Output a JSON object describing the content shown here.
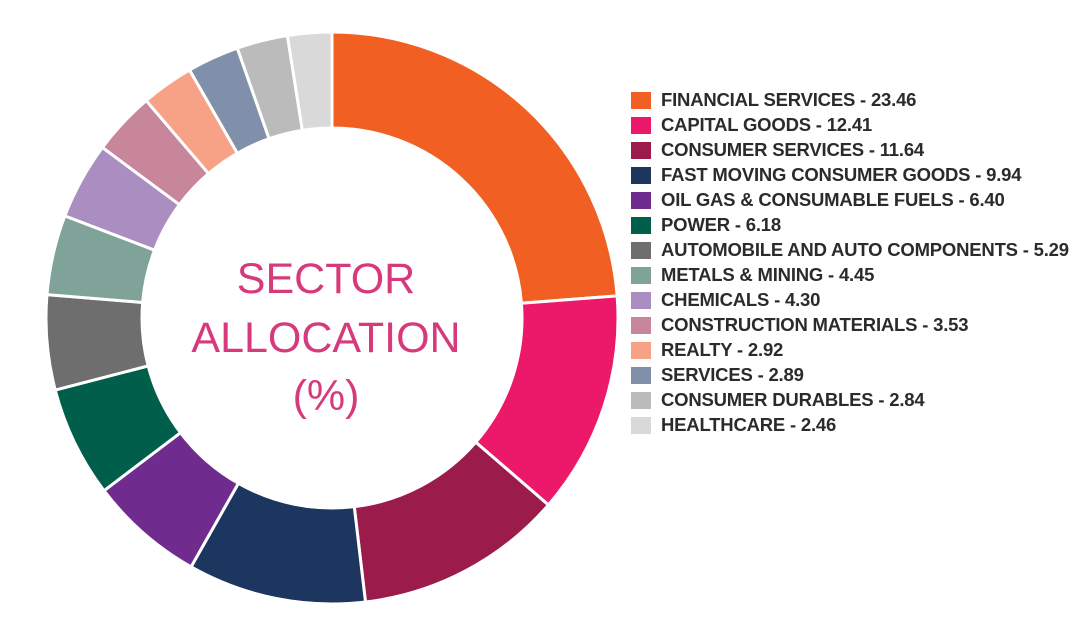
{
  "chart_data": {
    "type": "pie",
    "title_lines": [
      "SECTOR",
      "ALLOCATION",
      "(%)"
    ],
    "legend_position": "right",
    "categories": [
      "FINANCIAL SERVICES",
      "CAPITAL GOODS",
      "CONSUMER SERVICES",
      "FAST MOVING CONSUMER GOODS",
      "OIL GAS & CONSUMABLE FUELS",
      "POWER",
      "AUTOMOBILE AND AUTO COMPONENTS",
      "METALS & MINING",
      "CHEMICALS",
      "CONSTRUCTION MATERIALS",
      "REALTY",
      "SERVICES",
      "CONSUMER DURABLES",
      "HEALTHCARE"
    ],
    "values": [
      23.46,
      12.41,
      11.64,
      9.94,
      6.4,
      6.18,
      5.29,
      4.45,
      4.3,
      3.53,
      2.92,
      2.89,
      2.84,
      2.46
    ],
    "legend_labels": [
      "FINANCIAL SERVICES - 23.46",
      "CAPITAL GOODS - 12.41",
      "CONSUMER SERVICES - 11.64",
      "FAST MOVING CONSUMER GOODS - 9.94",
      "OIL GAS & CONSUMABLE FUELS - 6.40",
      "POWER - 6.18",
      "AUTOMOBILE AND AUTO COMPONENTS - 5.29",
      "METALS & MINING - 4.45",
      "CHEMICALS - 4.30",
      "CONSTRUCTION MATERIALS - 3.53",
      "REALTY - 2.92",
      "SERVICES - 2.89",
      "CONSUMER DURABLES - 2.84",
      "HEALTHCARE - 2.46"
    ],
    "colors": [
      "#f15f22",
      "#ec1869",
      "#9b1b4b",
      "#1c3660",
      "#6f2b8e",
      "#005e4b",
      "#6e6e6e",
      "#7fa398",
      "#ab8ec1",
      "#c8869a",
      "#f7a286",
      "#8090aa",
      "#bbbbbb",
      "#d9d9d9"
    ]
  }
}
